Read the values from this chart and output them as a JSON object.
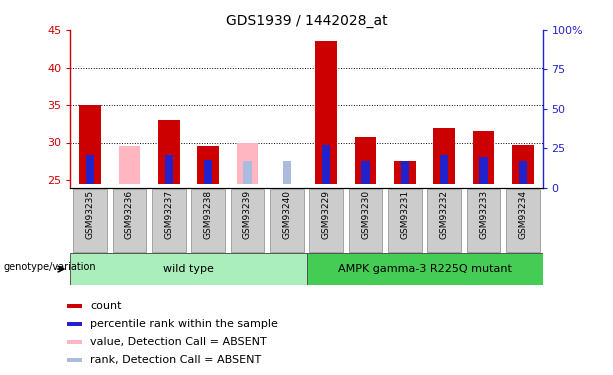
{
  "title": "GDS1939 / 1442028_at",
  "samples": [
    "GSM93235",
    "GSM93236",
    "GSM93237",
    "GSM93238",
    "GSM93239",
    "GSM93240",
    "GSM93229",
    "GSM93230",
    "GSM93231",
    "GSM93232",
    "GSM93233",
    "GSM93234"
  ],
  "ylim": [
    24,
    45
  ],
  "ylim_right": [
    0,
    100
  ],
  "yticks_left": [
    25,
    30,
    35,
    40,
    45
  ],
  "yticks_right": [
    0,
    25,
    50,
    75,
    100
  ],
  "grid_lines": [
    30,
    35,
    40
  ],
  "red_bar_tops": [
    35.0,
    24.5,
    33.0,
    29.6,
    24.5,
    25.8,
    43.5,
    30.7,
    27.5,
    32.0,
    31.5,
    29.7
  ],
  "blue_bar_tops": [
    28.3,
    24.5,
    28.4,
    27.7,
    27.5,
    27.5,
    29.7,
    27.5,
    27.5,
    28.3,
    28.1,
    27.5
  ],
  "pink_bar_tops": [
    24.5,
    29.6,
    24.5,
    24.5,
    30.0,
    24.5,
    24.5,
    24.5,
    24.5,
    24.5,
    24.5,
    24.5
  ],
  "lb_bar_tops": [
    24.5,
    24.5,
    24.5,
    24.5,
    27.6,
    27.5,
    24.5,
    24.5,
    24.5,
    24.5,
    24.5,
    24.5
  ],
  "absent_mask": [
    false,
    true,
    false,
    false,
    true,
    true,
    false,
    false,
    false,
    false,
    false,
    false
  ],
  "bar_width": 0.55,
  "baseline": 24.5,
  "red_color": "#cc0000",
  "blue_color": "#2222cc",
  "pink_color": "#ffb6c1",
  "lb_color": "#aabbdd",
  "tick_bg": "#cccccc",
  "wt_color": "#aaeebb",
  "mut_color": "#44cc55",
  "legend_items": [
    [
      "#cc0000",
      "count"
    ],
    [
      "#2222cc",
      "percentile rank within the sample"
    ],
    [
      "#ffb6c1",
      "value, Detection Call = ABSENT"
    ],
    [
      "#aabbdd",
      "rank, Detection Call = ABSENT"
    ]
  ]
}
